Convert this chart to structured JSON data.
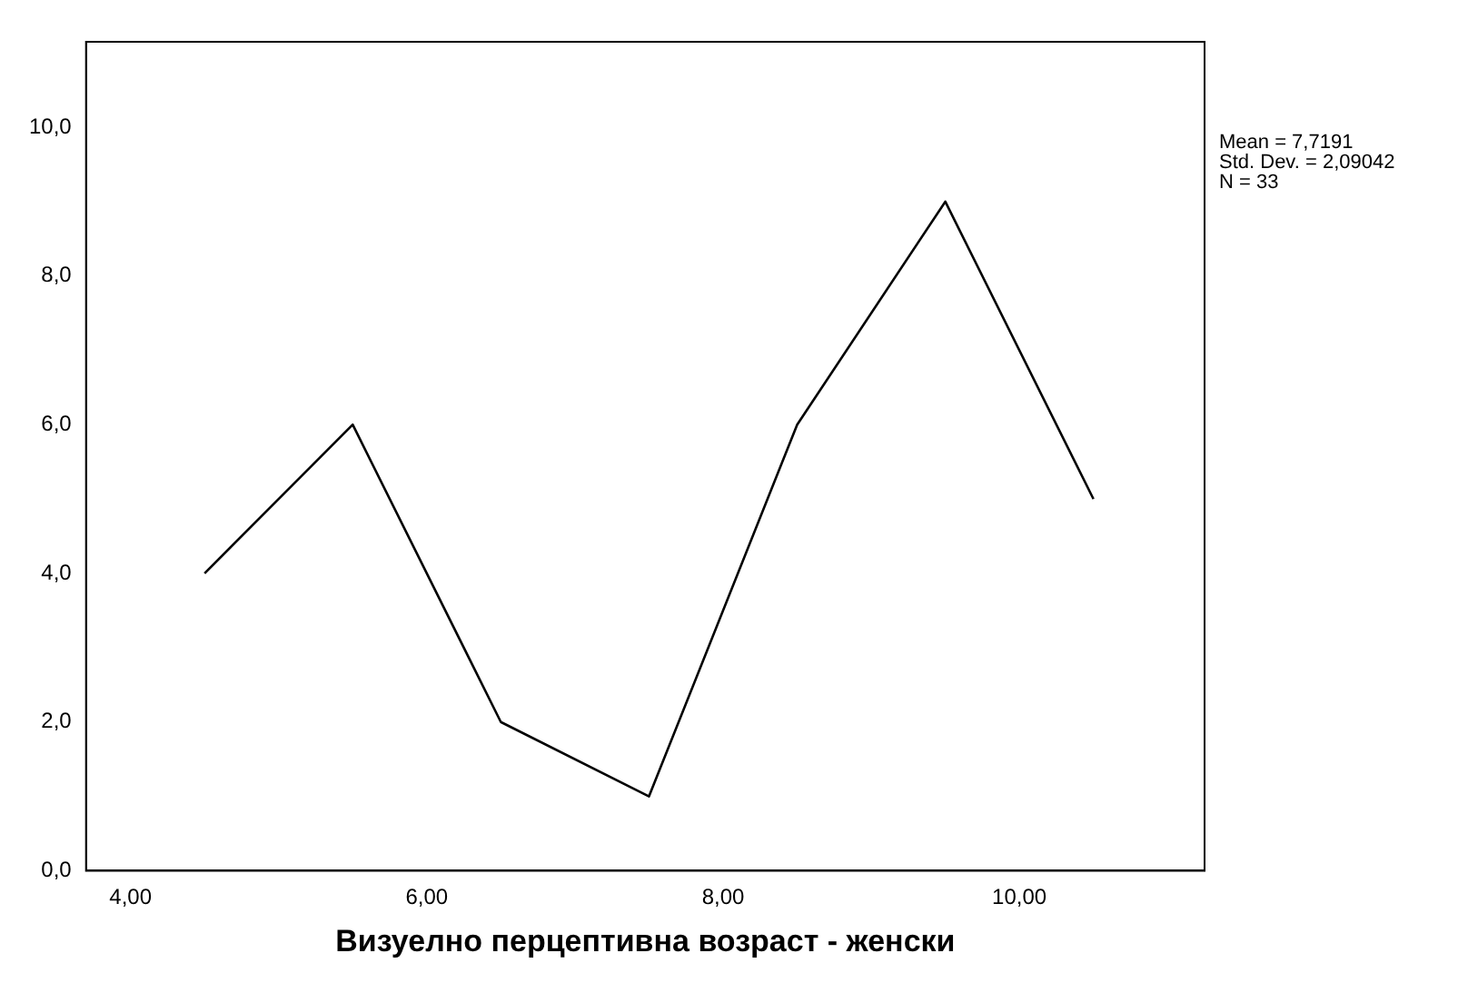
{
  "chart_data": {
    "type": "line",
    "xlabel": "Визуелно перцептивна возраст - женски",
    "x": [
      4.5,
      5.5,
      6.5,
      7.5,
      8.5,
      9.5,
      10.5
    ],
    "series": [
      {
        "color": "#000000",
        "values": [
          4,
          6,
          2,
          1,
          6,
          9,
          5
        ]
      }
    ],
    "xlim": [
      3.7,
      11.25
    ],
    "xticks": [
      {
        "value": 4,
        "label": "4,00"
      },
      {
        "value": 6,
        "label": "6,00"
      },
      {
        "value": 8,
        "label": "8,00"
      },
      {
        "value": 10,
        "label": "10,00"
      }
    ],
    "ylim": [
      0,
      11.15
    ],
    "yticks": [
      {
        "value": 0,
        "label": "0,0"
      },
      {
        "value": 2,
        "label": "2,0"
      },
      {
        "value": 4,
        "label": "4,0"
      },
      {
        "value": 6,
        "label": "6,0"
      },
      {
        "value": 8,
        "label": "8,0"
      },
      {
        "value": 10,
        "label": "10,0"
      }
    ],
    "grid": false,
    "legend": false,
    "marker": "none",
    "line_style": "solid",
    "annotations": [
      "Mean = 7,7191",
      "Std. Dev. = 2,09042",
      "N = 33"
    ]
  }
}
